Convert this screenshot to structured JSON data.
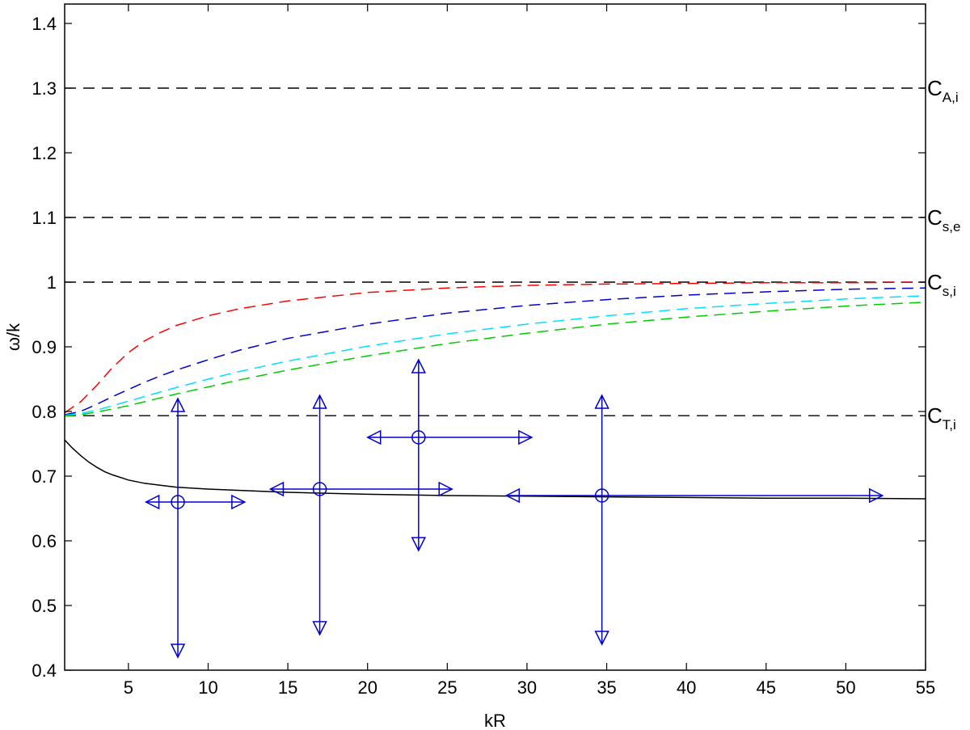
{
  "chart_data": {
    "type": "line",
    "xlabel": "kR",
    "ylabel": "ω/k",
    "xlim": [
      1,
      55
    ],
    "ylim": [
      0.4,
      1.43
    ],
    "xticks": [
      5,
      10,
      15,
      20,
      25,
      30,
      35,
      40,
      45,
      50,
      55
    ],
    "yticks": [
      0.4,
      0.5,
      0.6,
      0.7,
      0.8,
      0.9,
      1,
      1.1,
      1.2,
      1.3,
      1.4
    ],
    "grid": false,
    "reference_lines": [
      {
        "y": 1.3,
        "label": "C",
        "subscript": "A,i"
      },
      {
        "y": 1.1,
        "label": "C",
        "subscript": "s,e"
      },
      {
        "y": 1.0,
        "label": "C",
        "subscript": "s,i"
      },
      {
        "y": 0.7935,
        "label": "C",
        "subscript": "T,i"
      }
    ],
    "series": [
      {
        "color": "#ff0000",
        "style": "dashed",
        "x": [
          1,
          2,
          3,
          4,
          5,
          6,
          7,
          8,
          10,
          12,
          15,
          20,
          25,
          30,
          35,
          40,
          45,
          50,
          55
        ],
        "y": [
          0.798,
          0.815,
          0.84,
          0.868,
          0.891,
          0.909,
          0.922,
          0.933,
          0.948,
          0.959,
          0.971,
          0.984,
          0.991,
          0.995,
          0.997,
          0.998,
          0.999,
          0.999,
          1.0
        ]
      },
      {
        "color": "#0000cc",
        "style": "dashed",
        "x": [
          1,
          2,
          3,
          4,
          5,
          6,
          7,
          8,
          10,
          12,
          15,
          20,
          25,
          30,
          35,
          40,
          45,
          50,
          55
        ],
        "y": [
          0.795,
          0.8,
          0.811,
          0.823,
          0.834,
          0.845,
          0.855,
          0.864,
          0.88,
          0.895,
          0.913,
          0.935,
          0.952,
          0.964,
          0.973,
          0.98,
          0.985,
          0.989,
          0.991
        ]
      },
      {
        "color": "#00e0ff",
        "style": "dashed",
        "x": [
          1,
          2,
          3,
          4,
          5,
          6,
          7,
          8,
          10,
          12,
          15,
          20,
          25,
          30,
          35,
          40,
          45,
          50,
          55
        ],
        "y": [
          0.794,
          0.797,
          0.802,
          0.809,
          0.816,
          0.823,
          0.83,
          0.837,
          0.85,
          0.862,
          0.878,
          0.901,
          0.92,
          0.935,
          0.948,
          0.959,
          0.967,
          0.974,
          0.979
        ]
      },
      {
        "color": "#00cc00",
        "style": "dashed",
        "x": [
          1,
          2,
          3,
          4,
          5,
          6,
          7,
          8,
          10,
          12,
          15,
          20,
          25,
          30,
          35,
          40,
          45,
          50,
          55
        ],
        "y": [
          0.793,
          0.795,
          0.799,
          0.804,
          0.809,
          0.815,
          0.821,
          0.827,
          0.838,
          0.849,
          0.864,
          0.886,
          0.905,
          0.921,
          0.935,
          0.946,
          0.955,
          0.963,
          0.969
        ]
      },
      {
        "color": "#000000",
        "style": "solid",
        "x": [
          1,
          1.5,
          2,
          2.5,
          3,
          3.5,
          4,
          5,
          6,
          7,
          8,
          10,
          12,
          15,
          20,
          25,
          30,
          35,
          40,
          45,
          50,
          55
        ],
        "y": [
          0.756,
          0.743,
          0.732,
          0.722,
          0.714,
          0.707,
          0.702,
          0.694,
          0.689,
          0.686,
          0.683,
          0.68,
          0.678,
          0.675,
          0.672,
          0.67,
          0.669,
          0.668,
          0.667,
          0.666,
          0.666,
          0.665
        ]
      }
    ],
    "error_crosses": [
      {
        "x": 8.1,
        "y": 0.66,
        "x_min": 6.1,
        "x_max": 12.3,
        "y_min": 0.42,
        "y_max": 0.82
      },
      {
        "x": 17.0,
        "y": 0.68,
        "x_min": 13.9,
        "x_max": 25.3,
        "y_min": 0.455,
        "y_max": 0.825
      },
      {
        "x": 23.2,
        "y": 0.76,
        "x_min": 20.0,
        "x_max": 30.3,
        "y_min": 0.585,
        "y_max": 0.88
      },
      {
        "x": 34.7,
        "y": 0.67,
        "x_min": 28.7,
        "x_max": 52.3,
        "y_min": 0.44,
        "y_max": 0.825
      }
    ],
    "marker_color": "#0000cc"
  }
}
